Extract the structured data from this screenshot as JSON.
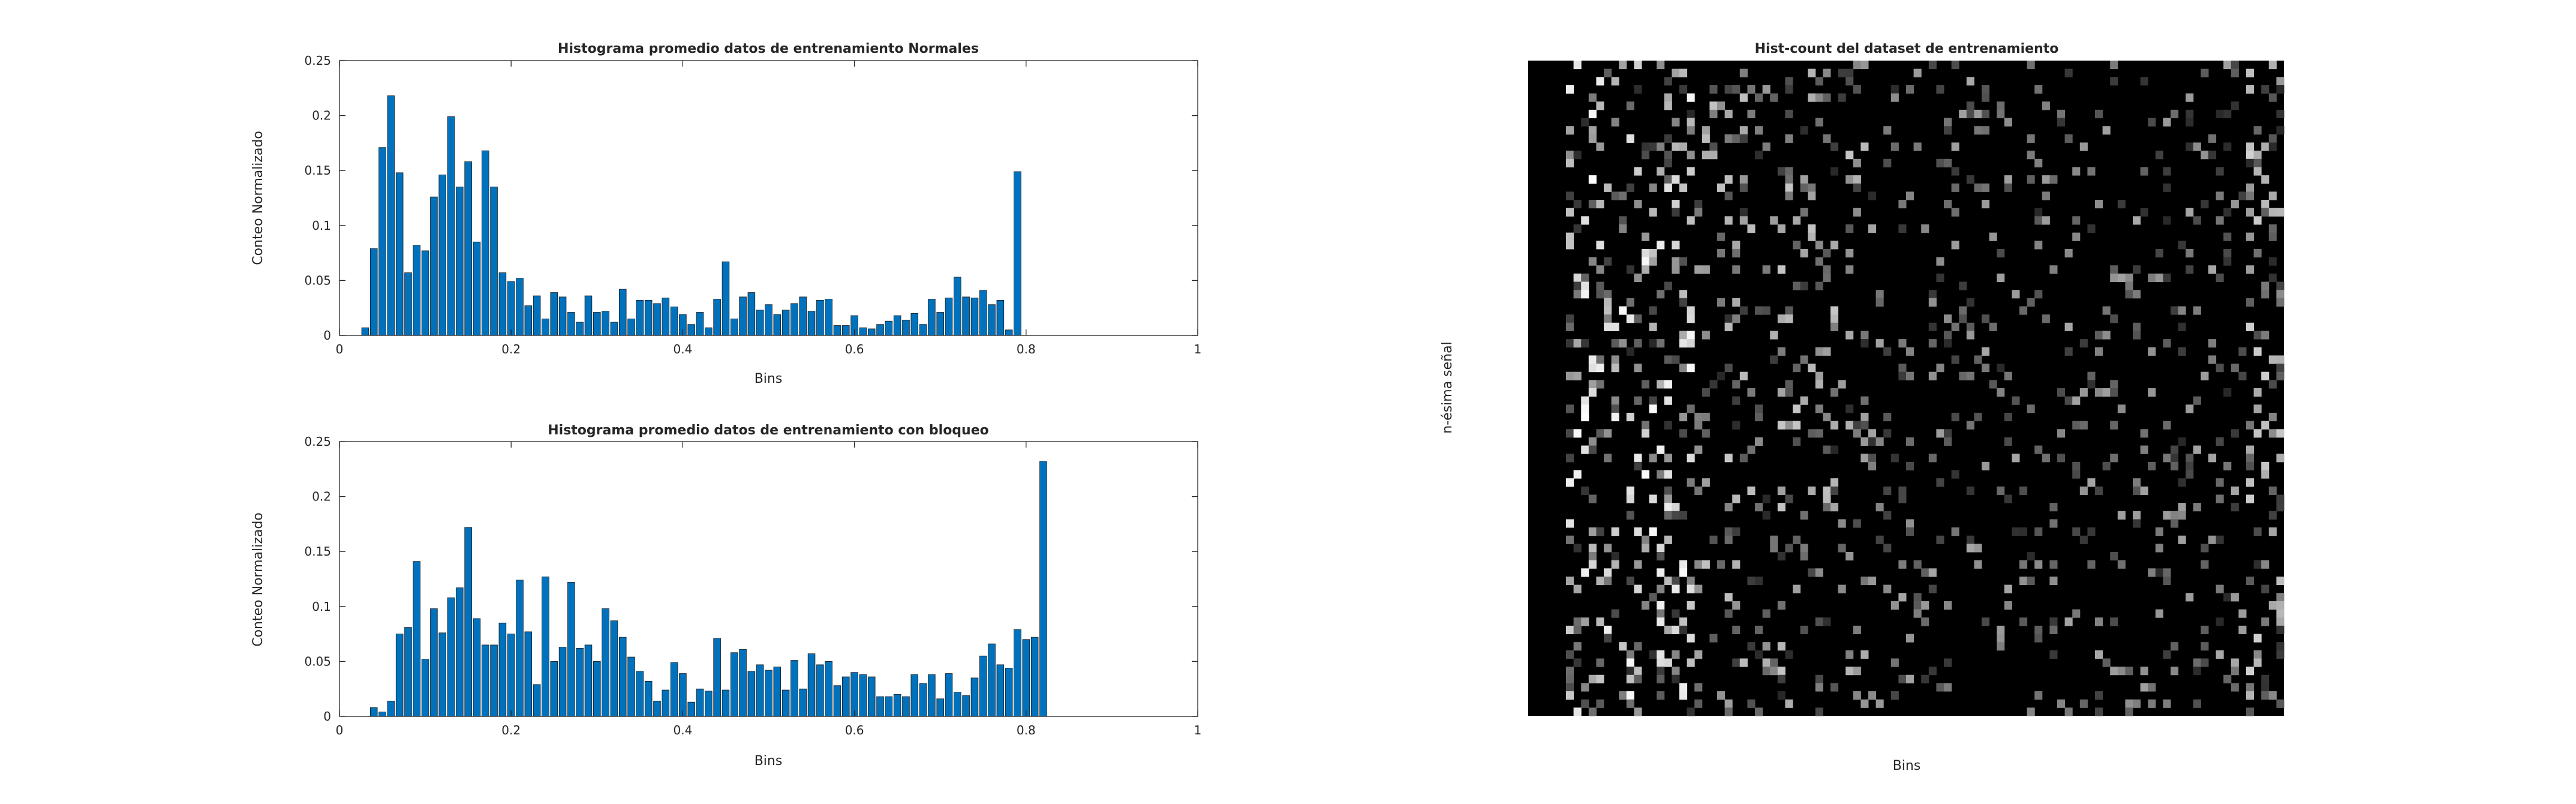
{
  "chart_data": [
    {
      "type": "bar",
      "title": "Histograma promedio datos de entrenamiento Normales",
      "xlabel": "Bins",
      "ylabel": "Conteo Normalizado",
      "xlim": [
        0,
        1
      ],
      "ylim": [
        0,
        0.25
      ],
      "xticks": [
        "0",
        "0.2",
        "0.4",
        "0.6",
        "0.8",
        "1"
      ],
      "yticks": [
        "0",
        "0.05",
        "0.1",
        "0.15",
        "0.2",
        "0.25"
      ],
      "grid": false,
      "color": "#0072BD",
      "bin_width": 0.01,
      "x_start": 0.01,
      "values": [
        0,
        0,
        0.007,
        0.079,
        0.171,
        0.218,
        0.148,
        0.057,
        0.082,
        0.077,
        0.126,
        0.146,
        0.199,
        0.135,
        0.158,
        0.085,
        0.168,
        0.135,
        0.057,
        0.049,
        0.052,
        0.027,
        0.036,
        0.015,
        0.039,
        0.035,
        0.021,
        0.012,
        0.036,
        0.021,
        0.022,
        0.012,
        0.042,
        0.015,
        0.032,
        0.032,
        0.029,
        0.034,
        0.026,
        0.019,
        0.01,
        0.021,
        0.007,
        0.033,
        0.067,
        0.015,
        0.035,
        0.039,
        0.023,
        0.028,
        0.019,
        0.023,
        0.029,
        0.035,
        0.022,
        0.032,
        0.033,
        0.009,
        0.009,
        0.018,
        0.007,
        0.006,
        0.01,
        0.013,
        0.018,
        0.014,
        0.02,
        0.01,
        0.033,
        0.021,
        0.034,
        0.053,
        0.035,
        0.034,
        0.041,
        0.028,
        0.032,
        0.005,
        0.149
      ]
    },
    {
      "type": "bar",
      "title": "Histograma promedio datos de entrenamiento con bloqueo",
      "xlabel": "Bins",
      "ylabel": "Conteo Normalizado",
      "xlim": [
        0,
        1
      ],
      "ylim": [
        0,
        0.25
      ],
      "xticks": [
        "0",
        "0.2",
        "0.4",
        "0.6",
        "0.8",
        "1"
      ],
      "yticks": [
        "0",
        "0.05",
        "0.1",
        "0.15",
        "0.2",
        "0.25"
      ],
      "grid": false,
      "color": "#0072BD",
      "bin_width": 0.01,
      "x_start": 0.01,
      "values": [
        0,
        0,
        0,
        0.008,
        0.004,
        0.014,
        0.075,
        0.081,
        0.141,
        0.052,
        0.098,
        0.076,
        0.108,
        0.117,
        0.172,
        0.089,
        0.065,
        0.065,
        0.085,
        0.075,
        0.124,
        0.077,
        0.029,
        0.127,
        0.05,
        0.063,
        0.122,
        0.062,
        0.065,
        0.05,
        0.098,
        0.087,
        0.072,
        0.054,
        0.041,
        0.032,
        0.014,
        0.024,
        0.049,
        0.039,
        0.013,
        0.025,
        0.023,
        0.071,
        0.024,
        0.058,
        0.061,
        0.041,
        0.047,
        0.042,
        0.045,
        0.024,
        0.051,
        0.025,
        0.057,
        0.047,
        0.05,
        0.028,
        0.036,
        0.04,
        0.038,
        0.036,
        0.018,
        0.018,
        0.02,
        0.018,
        0.038,
        0.03,
        0.038,
        0.016,
        0.039,
        0.022,
        0.019,
        0.035,
        0.055,
        0.066,
        0.047,
        0.044,
        0.079,
        0.07,
        0.072,
        0.232
      ]
    },
    {
      "type": "heatmap",
      "title": "Hist-count del dataset de entrenamiento",
      "xlabel": "Bins",
      "ylabel": "n-ésima señal",
      "colormap": "gray",
      "columns": 100,
      "rows": 80,
      "description_of_pattern": []
    }
  ]
}
